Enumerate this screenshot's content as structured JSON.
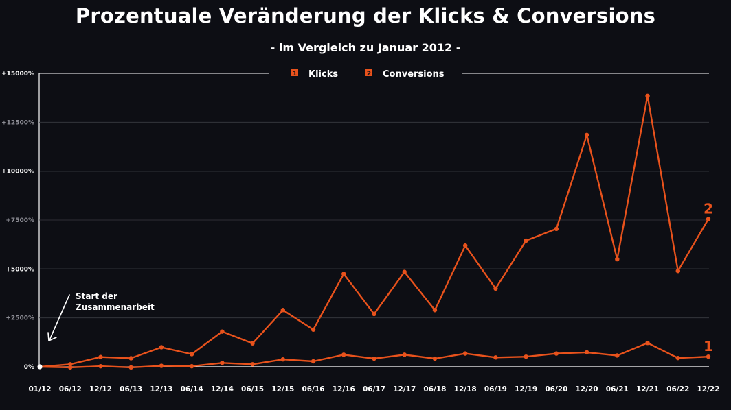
{
  "title": "Prozentuale Veränderung der Klicks & Conversions",
  "subtitle": "- im Vergleich zu Januar 2012 -",
  "colors": {
    "background": "#0d0e14",
    "series": "#e8521c",
    "grid": "#3a3b42",
    "text": "#ffffff",
    "tick_faded": "#8c8c94"
  },
  "annotation": {
    "line1": "Start der",
    "line2": "Zusammenarbeit"
  },
  "chart_data": {
    "type": "line",
    "title": "Prozentuale Veränderung der Klicks & Conversions",
    "subtitle": "- im Vergleich zu Januar 2012 -",
    "xlabel": "",
    "ylabel": "",
    "ylim": [
      0,
      15000
    ],
    "yticks": [
      {
        "value": 0,
        "label": "0%"
      },
      {
        "value": 2500,
        "label": "+2500%"
      },
      {
        "value": 5000,
        "label": "+5000%"
      },
      {
        "value": 7500,
        "label": "+7500%"
      },
      {
        "value": 10000,
        "label": "+10000%"
      },
      {
        "value": 12500,
        "label": "+12500%"
      },
      {
        "value": 15000,
        "label": "+15000%"
      }
    ],
    "grid": true,
    "legend_position": "top-center",
    "categories": [
      "01/12",
      "06/12",
      "12/12",
      "06/13",
      "12/13",
      "06/14",
      "12/14",
      "06/15",
      "12/15",
      "06/16",
      "12/16",
      "06/17",
      "12/17",
      "06/18",
      "12/18",
      "06/19",
      "12/19",
      "06/20",
      "12/20",
      "06/21",
      "12/21",
      "06/22",
      "12/22"
    ],
    "series": [
      {
        "name": "Klicks",
        "marker": "1",
        "values": [
          0,
          -30,
          30,
          -30,
          50,
          30,
          200,
          130,
          380,
          280,
          620,
          420,
          620,
          420,
          680,
          480,
          520,
          680,
          740,
          580,
          1220,
          450,
          520
        ]
      },
      {
        "name": "Conversions",
        "marker": "2",
        "values": [
          0,
          130,
          500,
          440,
          1000,
          650,
          1800,
          1200,
          2900,
          1900,
          4750,
          2700,
          4850,
          2900,
          6200,
          4000,
          6450,
          7050,
          11850,
          5500,
          13850,
          4900,
          7550
        ]
      }
    ]
  }
}
